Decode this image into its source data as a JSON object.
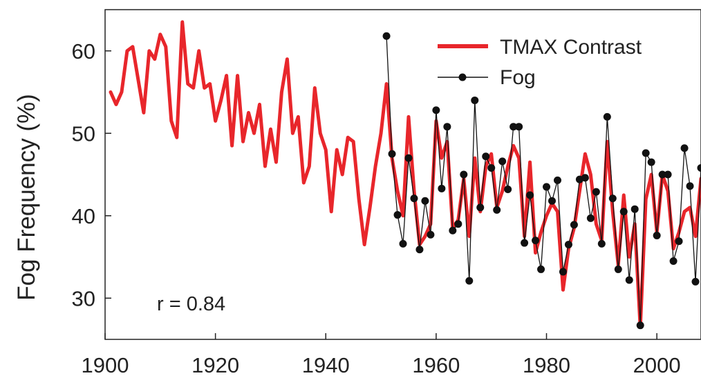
{
  "chart_data": {
    "type": "line",
    "ylabel": "Fog Frequency (%)",
    "xlim": [
      1900,
      2008
    ],
    "ylim": [
      25,
      65
    ],
    "x_ticks": [
      1900,
      1920,
      1940,
      1960,
      1980,
      2000
    ],
    "y_ticks": [
      30,
      40,
      50,
      60
    ],
    "grid": false,
    "legend_position": "top-right",
    "annotation": "r = 0.84",
    "series": [
      {
        "name": "TMAX Contrast",
        "color": "#e8262b",
        "points": [
          [
            1901,
            55
          ],
          [
            1902,
            53.5
          ],
          [
            1903,
            55
          ],
          [
            1904,
            60
          ],
          [
            1905,
            60.5
          ],
          [
            1906,
            56.5
          ],
          [
            1907,
            52.5
          ],
          [
            1908,
            60
          ],
          [
            1909,
            59
          ],
          [
            1910,
            62
          ],
          [
            1911,
            60.5
          ],
          [
            1912,
            51.5
          ],
          [
            1913,
            49.5
          ],
          [
            1914,
            63.5
          ],
          [
            1915,
            56
          ],
          [
            1916,
            55.5
          ],
          [
            1917,
            60
          ],
          [
            1918,
            55.5
          ],
          [
            1919,
            56
          ],
          [
            1920,
            51.5
          ],
          [
            1921,
            54
          ],
          [
            1922,
            57
          ],
          [
            1923,
            48.5
          ],
          [
            1924,
            57
          ],
          [
            1925,
            49
          ],
          [
            1926,
            52.5
          ],
          [
            1927,
            50
          ],
          [
            1928,
            53.5
          ],
          [
            1929,
            46
          ],
          [
            1930,
            50.5
          ],
          [
            1931,
            46.5
          ],
          [
            1932,
            55
          ],
          [
            1933,
            59
          ],
          [
            1934,
            50
          ],
          [
            1935,
            52
          ],
          [
            1936,
            44
          ],
          [
            1937,
            46
          ],
          [
            1938,
            55.5
          ],
          [
            1939,
            50
          ],
          [
            1940,
            48
          ],
          [
            1941,
            40.5
          ],
          [
            1942,
            48
          ],
          [
            1943,
            45
          ],
          [
            1944,
            49.5
          ],
          [
            1945,
            49
          ],
          [
            1946,
            42
          ],
          [
            1947,
            36.5
          ],
          [
            1948,
            41
          ],
          [
            1949,
            46
          ],
          [
            1950,
            50
          ],
          [
            1951,
            56
          ],
          [
            1952,
            47
          ],
          [
            1953,
            43
          ],
          [
            1954,
            40
          ],
          [
            1955,
            52
          ],
          [
            1956,
            43
          ],
          [
            1957,
            36.5
          ],
          [
            1958,
            37.5
          ],
          [
            1959,
            39
          ],
          [
            1960,
            51.5
          ],
          [
            1961,
            47
          ],
          [
            1962,
            49
          ],
          [
            1963,
            38.5
          ],
          [
            1964,
            39.5
          ],
          [
            1965,
            44.5
          ],
          [
            1966,
            37.5
          ],
          [
            1967,
            47
          ],
          [
            1968,
            40.5
          ],
          [
            1969,
            46
          ],
          [
            1970,
            47.5
          ],
          [
            1971,
            41
          ],
          [
            1972,
            43
          ],
          [
            1973,
            46
          ],
          [
            1974,
            48.5
          ],
          [
            1975,
            47
          ],
          [
            1976,
            37.5
          ],
          [
            1977,
            46.5
          ],
          [
            1978,
            35.5
          ],
          [
            1979,
            38
          ],
          [
            1980,
            40
          ],
          [
            1981,
            41.5
          ],
          [
            1982,
            40.5
          ],
          [
            1983,
            31
          ],
          [
            1984,
            36
          ],
          [
            1985,
            38.5
          ],
          [
            1986,
            43
          ],
          [
            1987,
            47.5
          ],
          [
            1988,
            45
          ],
          [
            1989,
            39
          ],
          [
            1990,
            37
          ],
          [
            1991,
            49
          ],
          [
            1992,
            40.5
          ],
          [
            1993,
            34
          ],
          [
            1994,
            42.5
          ],
          [
            1995,
            35
          ],
          [
            1996,
            39
          ],
          [
            1997,
            26.5
          ],
          [
            1998,
            42
          ],
          [
            1999,
            45
          ],
          [
            2000,
            38
          ],
          [
            2001,
            45
          ],
          [
            2002,
            43
          ],
          [
            2003,
            36
          ],
          [
            2004,
            38
          ],
          [
            2005,
            40.5
          ],
          [
            2006,
            41
          ],
          [
            2007,
            37.5
          ],
          [
            2008,
            44.5
          ]
        ]
      },
      {
        "name": "Fog",
        "color": "#111111",
        "points": [
          [
            1951,
            61.8
          ],
          [
            1952,
            47.5
          ],
          [
            1953,
            40.1
          ],
          [
            1954,
            36.6
          ],
          [
            1955,
            47
          ],
          [
            1956,
            42.1
          ],
          [
            1957,
            35.9
          ],
          [
            1958,
            41.8
          ],
          [
            1959,
            37.7
          ],
          [
            1960,
            52.8
          ],
          [
            1961,
            43.3
          ],
          [
            1962,
            50.8
          ],
          [
            1963,
            38.2
          ],
          [
            1964,
            39
          ],
          [
            1965,
            45
          ],
          [
            1966,
            32.1
          ],
          [
            1967,
            54
          ],
          [
            1968,
            41
          ],
          [
            1969,
            47.2
          ],
          [
            1970,
            45.8
          ],
          [
            1971,
            40.7
          ],
          [
            1972,
            46.6
          ],
          [
            1973,
            43.2
          ],
          [
            1974,
            50.8
          ],
          [
            1975,
            50.8
          ],
          [
            1976,
            36.7
          ],
          [
            1977,
            42.5
          ],
          [
            1978,
            37
          ],
          [
            1979,
            33.5
          ],
          [
            1980,
            43.5
          ],
          [
            1981,
            41.8
          ],
          [
            1982,
            44.3
          ],
          [
            1983,
            33.2
          ],
          [
            1984,
            36.5
          ],
          [
            1985,
            38.9
          ],
          [
            1986,
            44.4
          ],
          [
            1987,
            44.6
          ],
          [
            1988,
            39.7
          ],
          [
            1989,
            42.9
          ],
          [
            1990,
            36.6
          ],
          [
            1991,
            52
          ],
          [
            1992,
            42.1
          ],
          [
            1993,
            33.5
          ],
          [
            1994,
            40.5
          ],
          [
            1995,
            32.2
          ],
          [
            1996,
            40.8
          ],
          [
            1997,
            26.7
          ],
          [
            1998,
            47.6
          ],
          [
            1999,
            46.5
          ],
          [
            2000,
            37.6
          ],
          [
            2001,
            45
          ],
          [
            2002,
            45
          ],
          [
            2003,
            34.5
          ],
          [
            2004,
            36.9
          ],
          [
            2005,
            48.2
          ],
          [
            2006,
            43.6
          ],
          [
            2007,
            32
          ],
          [
            2008,
            45.8
          ]
        ]
      }
    ]
  }
}
